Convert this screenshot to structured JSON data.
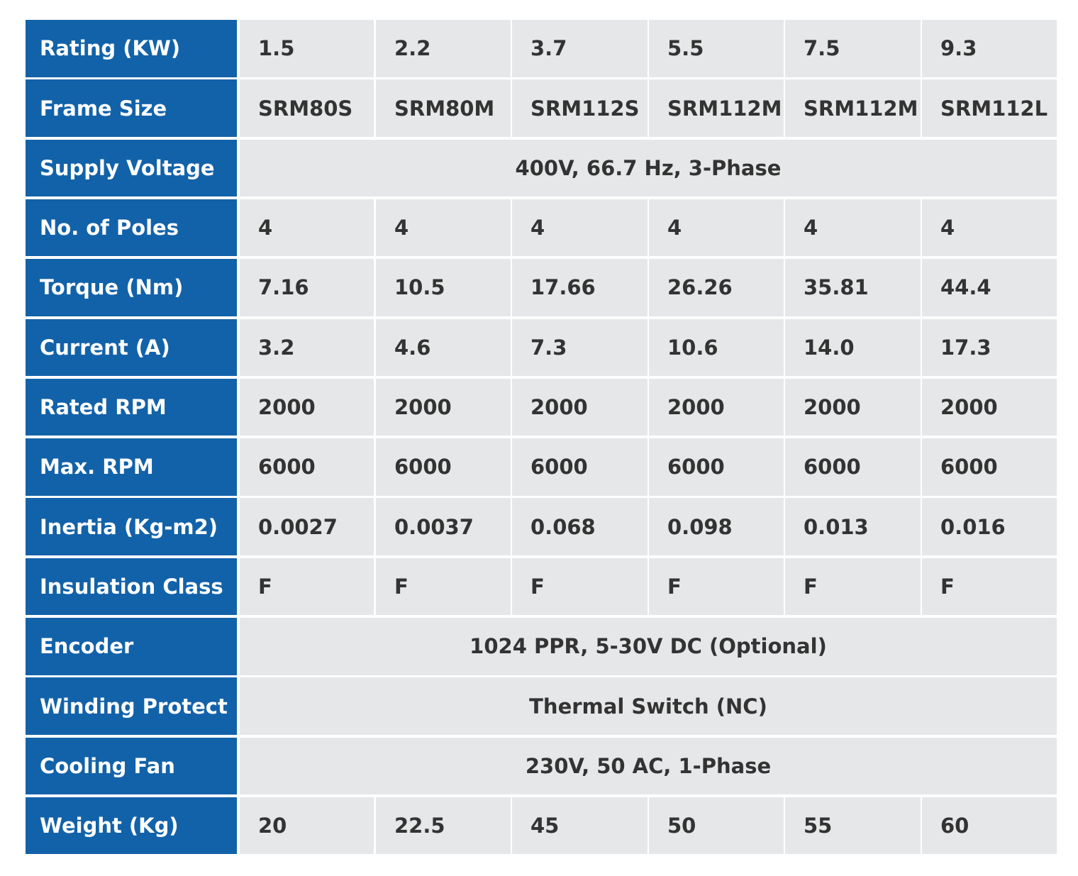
{
  "table": {
    "rows": [
      {
        "label": "Rating (KW)",
        "cells": [
          "1.5",
          "2.2",
          "3.7",
          "5.5",
          "7.5",
          "9.3"
        ]
      },
      {
        "label": "Frame Size",
        "cells": [
          "SRM80S",
          "SRM80M",
          "SRM112S",
          "SRM112M",
          "SRM112M",
          "SRM112L"
        ]
      },
      {
        "label": "Supply Voltage",
        "cells": [
          "400V, 66.7 Hz, 3-Phase"
        ]
      },
      {
        "label": "No. of Poles",
        "cells": [
          "4",
          "4",
          "4",
          "4",
          "4",
          "4"
        ]
      },
      {
        "label": "Torque (Nm)",
        "cells": [
          "7.16",
          "10.5",
          "17.66",
          "26.26",
          "35.81",
          "44.4"
        ]
      },
      {
        "label": "Current (A)",
        "cells": [
          "3.2",
          "4.6",
          "7.3",
          "10.6",
          "14.0",
          "17.3"
        ]
      },
      {
        "label": "Rated RPM",
        "cells": [
          "2000",
          "2000",
          "2000",
          "2000",
          "2000",
          "2000"
        ]
      },
      {
        "label": "Max. RPM",
        "cells": [
          "6000",
          "6000",
          "6000",
          "6000",
          "6000",
          "6000"
        ]
      },
      {
        "label": "Inertia (Kg-m2)",
        "cells": [
          "0.0027",
          "0.0037",
          "0.068",
          "0.098",
          "0.013",
          "0.016"
        ]
      },
      {
        "label": "Insulation Class",
        "cells": [
          "F",
          "F",
          "F",
          "F",
          "F",
          "F"
        ]
      },
      {
        "label": "Encoder",
        "cells": [
          "1024 PPR, 5-30V DC (Optional)"
        ]
      },
      {
        "label": "Winding Protect",
        "cells": [
          "Thermal Switch (NC)"
        ]
      },
      {
        "label": "Cooling Fan",
        "cells": [
          "230V, 50 AC, 1-Phase"
        ]
      },
      {
        "label": "Weight (Kg)",
        "cells": [
          "20",
          "22.5",
          "45",
          "50",
          "55",
          "60"
        ]
      }
    ]
  }
}
